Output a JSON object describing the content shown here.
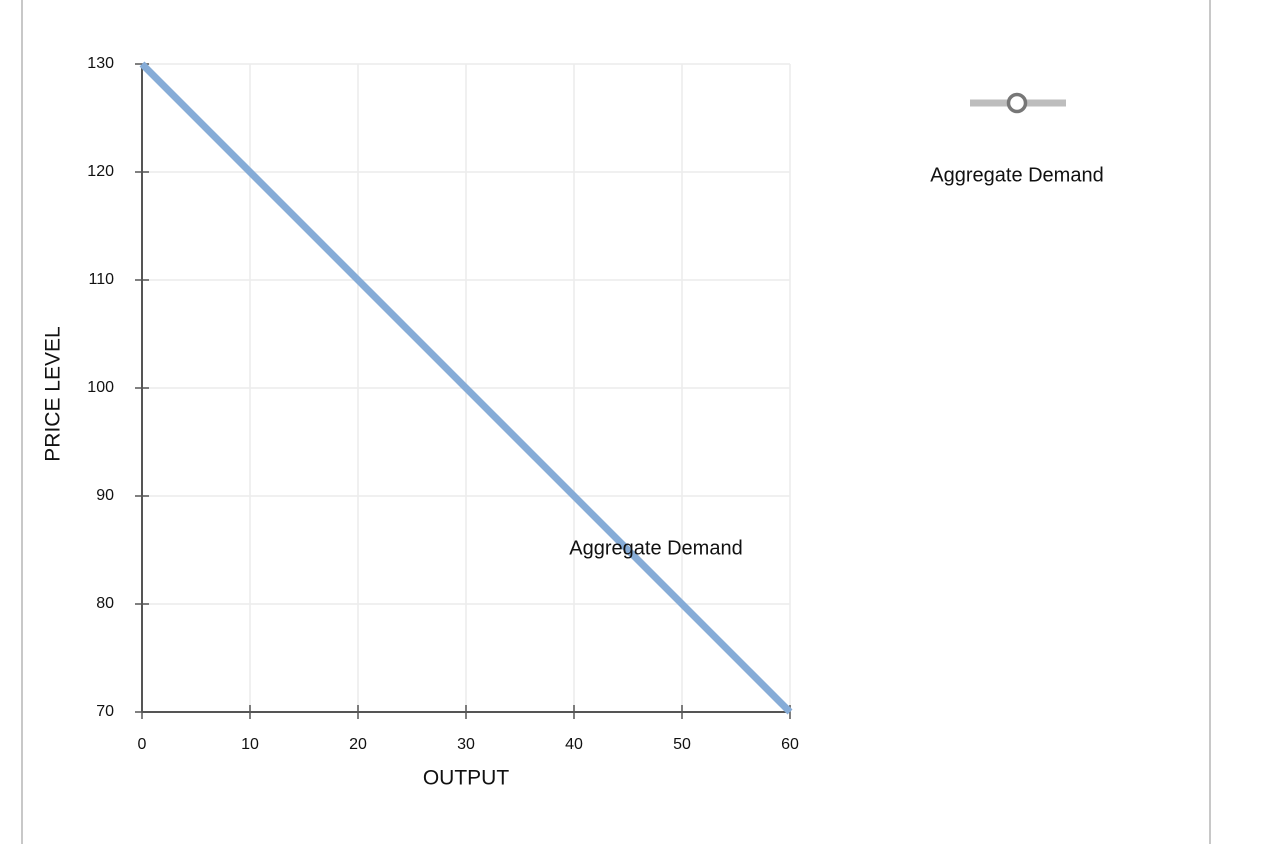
{
  "chart_data": {
    "type": "line",
    "x_label": "OUTPUT",
    "y_label": "PRICE LEVEL",
    "x": [
      0,
      60
    ],
    "series": [
      {
        "name": "Aggregate Demand",
        "color": "#86acd7",
        "values": [
          130,
          70
        ]
      }
    ],
    "annotations": [
      "Aggregate Demand"
    ],
    "xlim": [
      0,
      60
    ],
    "xticks": [
      0,
      10,
      20,
      30,
      40,
      50,
      60
    ],
    "ylim": [
      70,
      130
    ],
    "yticks": [
      70,
      80,
      90,
      100,
      110,
      120,
      130
    ],
    "grid": true
  }
}
